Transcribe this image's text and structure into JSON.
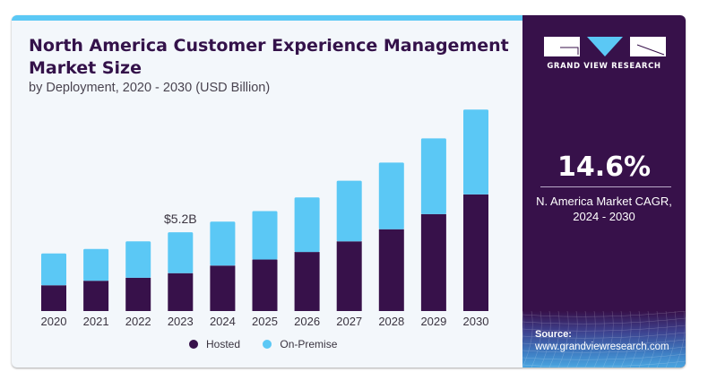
{
  "header": {
    "title": "North America Customer Experience Management Market Size",
    "subtitle": "by Deployment, 2020 - 2030 (USD Billion)"
  },
  "sidebar": {
    "brand": "GRAND VIEW RESEARCH",
    "cagr_value": "14.6%",
    "cagr_label_line1": "N. America Market CAGR,",
    "cagr_label_line2": "2024 - 2030",
    "source_label": "Source:",
    "source_url": "www.grandviewresearch.com"
  },
  "colors": {
    "hosted": "#37114a",
    "on_premise": "#5bc8f5",
    "accent": "#5bc8f5",
    "panel": "#37114a"
  },
  "chart_data": {
    "type": "bar",
    "stacked": true,
    "title": "North America Customer Experience Management Market Size",
    "subtitle": "by Deployment, 2020 - 2030 (USD Billion)",
    "xlabel": "",
    "ylabel": "",
    "categories": [
      "2020",
      "2021",
      "2022",
      "2023",
      "2024",
      "2025",
      "2026",
      "2027",
      "2028",
      "2029",
      "2030"
    ],
    "series": [
      {
        "name": "Hosted",
        "values": [
          1.7,
          2.0,
          2.2,
          2.5,
          3.0,
          3.4,
          3.9,
          4.6,
          5.4,
          6.4,
          7.7
        ]
      },
      {
        "name": "On-Premise",
        "values": [
          2.1,
          2.1,
          2.4,
          2.7,
          2.9,
          3.2,
          3.6,
          4.0,
          4.4,
          5.0,
          5.6
        ]
      }
    ],
    "annotations": [
      {
        "category": "2023",
        "text": "$5.2B"
      }
    ],
    "ylim": [
      0,
      14
    ],
    "grid": false,
    "legend": "bottom-center"
  }
}
